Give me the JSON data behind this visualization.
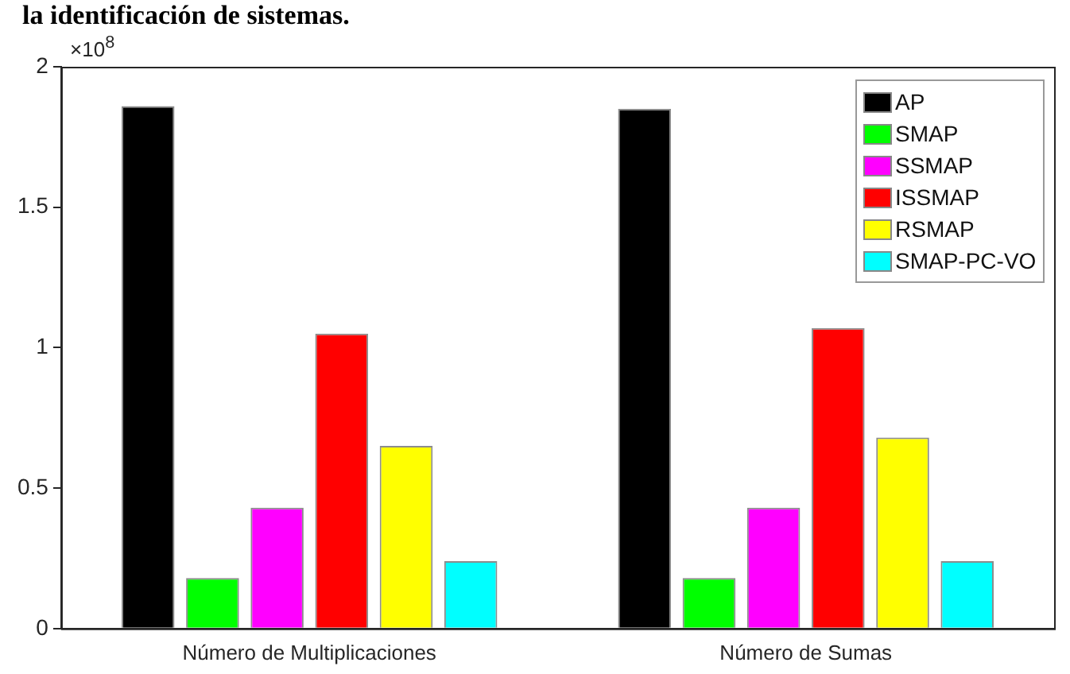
{
  "chart_data": {
    "type": "bar",
    "categories": [
      "Número de Multiplicaciones",
      "Número de Sumas"
    ],
    "series": [
      {
        "name": "AP",
        "color": "#000000",
        "values": [
          1.86,
          1.85
        ]
      },
      {
        "name": "SMAP",
        "color": "#00ff00",
        "values": [
          0.18,
          0.18
        ]
      },
      {
        "name": "SSMAP",
        "color": "#ff00ff",
        "values": [
          0.43,
          0.43
        ]
      },
      {
        "name": "ISSMAP",
        "color": "#ff0000",
        "values": [
          1.05,
          1.07
        ]
      },
      {
        "name": "RSMAP",
        "color": "#ffff00",
        "values": [
          0.65,
          0.68
        ]
      },
      {
        "name": "SMAP-PC-VO",
        "color": "#00ffff",
        "values": [
          0.24,
          0.24
        ]
      }
    ],
    "ylim": [
      0,
      2
    ],
    "yticks": [
      0,
      0.5,
      1,
      1.5,
      2
    ],
    "annotations": [
      "la identificación de sistemas.",
      "×10$^{8}$"
    ],
    "legend": "top right",
    "grid": false
  }
}
